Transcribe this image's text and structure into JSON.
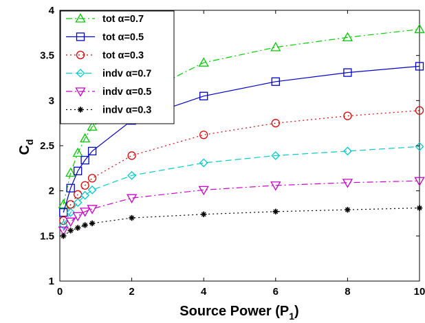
{
  "chart_data": {
    "type": "line",
    "xlabel": "Source Power (P",
    "xlabel_sub": "1",
    "xlabel_close": ")",
    "ylabel": "C",
    "ylabel_sub": "d",
    "xlim": [
      0,
      10
    ],
    "ylim": [
      1,
      4
    ],
    "x_ticks": [
      "0",
      "2",
      "4",
      "6",
      "8",
      "10"
    ],
    "y_ticks": [
      "1",
      "1.5",
      "2",
      "2.5",
      "3",
      "3.5",
      "4"
    ],
    "x_tick_values": [
      0,
      2,
      4,
      6,
      8,
      10
    ],
    "y_tick_values": [
      1,
      1.5,
      2,
      2.5,
      3,
      3.5,
      4
    ],
    "grid": false,
    "legend_position": "top-left",
    "series": [
      {
        "name": "tot α=0.7",
        "color": "#00cc00",
        "dash": "dashdot",
        "marker": "triangle-up",
        "x": [
          0.1,
          0.3,
          0.5,
          0.7,
          0.9,
          2,
          4,
          6,
          8,
          10
        ],
        "y": [
          1.85,
          2.2,
          2.42,
          2.58,
          2.71,
          3.02,
          3.42,
          3.59,
          3.7,
          3.79
        ]
      },
      {
        "name": "tot α=0.5",
        "color": "#0000cc",
        "dash": "solid",
        "marker": "square",
        "x": [
          0.1,
          0.3,
          0.5,
          0.7,
          0.9,
          2,
          4,
          6,
          8,
          10
        ],
        "y": [
          1.76,
          2.03,
          2.22,
          2.34,
          2.44,
          2.78,
          3.05,
          3.21,
          3.31,
          3.38
        ]
      },
      {
        "name": "tot α=0.3",
        "color": "#dd0000",
        "dash": "dotted",
        "marker": "circle",
        "x": [
          0.1,
          0.3,
          0.5,
          0.7,
          0.9,
          2,
          4,
          6,
          8,
          10
        ],
        "y": [
          1.67,
          1.85,
          1.96,
          2.06,
          2.14,
          2.39,
          2.62,
          2.75,
          2.83,
          2.89
        ]
      },
      {
        "name": "indv α=0.7",
        "color": "#00cccc",
        "dash": "dashed",
        "marker": "diamond",
        "x": [
          0.1,
          0.3,
          0.5,
          0.7,
          0.9,
          2,
          4,
          6,
          8,
          10
        ],
        "y": [
          1.62,
          1.76,
          1.87,
          1.95,
          2.01,
          2.17,
          2.31,
          2.39,
          2.44,
          2.49
        ]
      },
      {
        "name": "indv α=0.5",
        "color": "#cc00cc",
        "dash": "dashdot",
        "marker": "triangle-down",
        "x": [
          0.1,
          0.3,
          0.5,
          0.7,
          0.9,
          2,
          4,
          6,
          8,
          10
        ],
        "y": [
          1.56,
          1.66,
          1.72,
          1.77,
          1.8,
          1.92,
          2.01,
          2.06,
          2.09,
          2.11
        ]
      },
      {
        "name": "indv α=0.3",
        "color": "#000000",
        "dash": "dotted",
        "marker": "star",
        "x": [
          0.1,
          0.3,
          0.5,
          0.7,
          0.9,
          2,
          4,
          6,
          8,
          10
        ],
        "y": [
          1.5,
          1.56,
          1.59,
          1.62,
          1.64,
          1.7,
          1.74,
          1.77,
          1.79,
          1.81
        ]
      }
    ]
  }
}
